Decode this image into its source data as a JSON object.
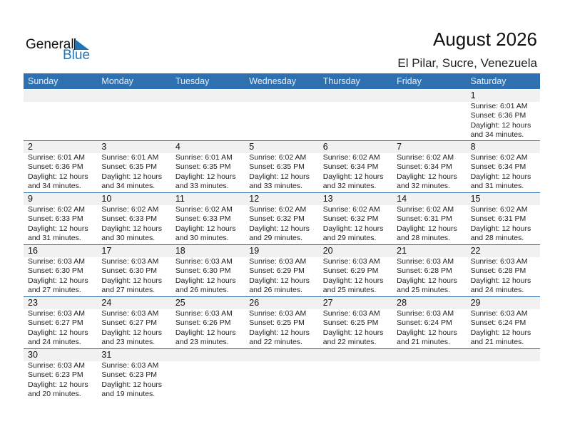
{
  "logo": {
    "text1": "General",
    "text2": "Blue"
  },
  "title": "August 2026",
  "location": "El Pilar, Sucre, Venezuela",
  "weekdays": [
    "Sunday",
    "Monday",
    "Tuesday",
    "Wednesday",
    "Thursday",
    "Friday",
    "Saturday"
  ],
  "colors": {
    "header": "#2e70b0",
    "band": "#f1f1f1",
    "logo_blue": "#1f73b7"
  },
  "weeks": [
    [
      null,
      null,
      null,
      null,
      null,
      null,
      {
        "day": "1",
        "sunrise": "Sunrise: 6:01 AM",
        "sunset": "Sunset: 6:36 PM",
        "daylight": "Daylight: 12 hours",
        "minutes": "and 34 minutes."
      }
    ],
    [
      {
        "day": "2",
        "sunrise": "Sunrise: 6:01 AM",
        "sunset": "Sunset: 6:36 PM",
        "daylight": "Daylight: 12 hours",
        "minutes": "and 34 minutes."
      },
      {
        "day": "3",
        "sunrise": "Sunrise: 6:01 AM",
        "sunset": "Sunset: 6:35 PM",
        "daylight": "Daylight: 12 hours",
        "minutes": "and 34 minutes."
      },
      {
        "day": "4",
        "sunrise": "Sunrise: 6:01 AM",
        "sunset": "Sunset: 6:35 PM",
        "daylight": "Daylight: 12 hours",
        "minutes": "and 33 minutes."
      },
      {
        "day": "5",
        "sunrise": "Sunrise: 6:02 AM",
        "sunset": "Sunset: 6:35 PM",
        "daylight": "Daylight: 12 hours",
        "minutes": "and 33 minutes."
      },
      {
        "day": "6",
        "sunrise": "Sunrise: 6:02 AM",
        "sunset": "Sunset: 6:34 PM",
        "daylight": "Daylight: 12 hours",
        "minutes": "and 32 minutes."
      },
      {
        "day": "7",
        "sunrise": "Sunrise: 6:02 AM",
        "sunset": "Sunset: 6:34 PM",
        "daylight": "Daylight: 12 hours",
        "minutes": "and 32 minutes."
      },
      {
        "day": "8",
        "sunrise": "Sunrise: 6:02 AM",
        "sunset": "Sunset: 6:34 PM",
        "daylight": "Daylight: 12 hours",
        "minutes": "and 31 minutes."
      }
    ],
    [
      {
        "day": "9",
        "sunrise": "Sunrise: 6:02 AM",
        "sunset": "Sunset: 6:33 PM",
        "daylight": "Daylight: 12 hours",
        "minutes": "and 31 minutes."
      },
      {
        "day": "10",
        "sunrise": "Sunrise: 6:02 AM",
        "sunset": "Sunset: 6:33 PM",
        "daylight": "Daylight: 12 hours",
        "minutes": "and 30 minutes."
      },
      {
        "day": "11",
        "sunrise": "Sunrise: 6:02 AM",
        "sunset": "Sunset: 6:33 PM",
        "daylight": "Daylight: 12 hours",
        "minutes": "and 30 minutes."
      },
      {
        "day": "12",
        "sunrise": "Sunrise: 6:02 AM",
        "sunset": "Sunset: 6:32 PM",
        "daylight": "Daylight: 12 hours",
        "minutes": "and 29 minutes."
      },
      {
        "day": "13",
        "sunrise": "Sunrise: 6:02 AM",
        "sunset": "Sunset: 6:32 PM",
        "daylight": "Daylight: 12 hours",
        "minutes": "and 29 minutes."
      },
      {
        "day": "14",
        "sunrise": "Sunrise: 6:02 AM",
        "sunset": "Sunset: 6:31 PM",
        "daylight": "Daylight: 12 hours",
        "minutes": "and 28 minutes."
      },
      {
        "day": "15",
        "sunrise": "Sunrise: 6:02 AM",
        "sunset": "Sunset: 6:31 PM",
        "daylight": "Daylight: 12 hours",
        "minutes": "and 28 minutes."
      }
    ],
    [
      {
        "day": "16",
        "sunrise": "Sunrise: 6:03 AM",
        "sunset": "Sunset: 6:30 PM",
        "daylight": "Daylight: 12 hours",
        "minutes": "and 27 minutes."
      },
      {
        "day": "17",
        "sunrise": "Sunrise: 6:03 AM",
        "sunset": "Sunset: 6:30 PM",
        "daylight": "Daylight: 12 hours",
        "minutes": "and 27 minutes."
      },
      {
        "day": "18",
        "sunrise": "Sunrise: 6:03 AM",
        "sunset": "Sunset: 6:30 PM",
        "daylight": "Daylight: 12 hours",
        "minutes": "and 26 minutes."
      },
      {
        "day": "19",
        "sunrise": "Sunrise: 6:03 AM",
        "sunset": "Sunset: 6:29 PM",
        "daylight": "Daylight: 12 hours",
        "minutes": "and 26 minutes."
      },
      {
        "day": "20",
        "sunrise": "Sunrise: 6:03 AM",
        "sunset": "Sunset: 6:29 PM",
        "daylight": "Daylight: 12 hours",
        "minutes": "and 25 minutes."
      },
      {
        "day": "21",
        "sunrise": "Sunrise: 6:03 AM",
        "sunset": "Sunset: 6:28 PM",
        "daylight": "Daylight: 12 hours",
        "minutes": "and 25 minutes."
      },
      {
        "day": "22",
        "sunrise": "Sunrise: 6:03 AM",
        "sunset": "Sunset: 6:28 PM",
        "daylight": "Daylight: 12 hours",
        "minutes": "and 24 minutes."
      }
    ],
    [
      {
        "day": "23",
        "sunrise": "Sunrise: 6:03 AM",
        "sunset": "Sunset: 6:27 PM",
        "daylight": "Daylight: 12 hours",
        "minutes": "and 24 minutes."
      },
      {
        "day": "24",
        "sunrise": "Sunrise: 6:03 AM",
        "sunset": "Sunset: 6:27 PM",
        "daylight": "Daylight: 12 hours",
        "minutes": "and 23 minutes."
      },
      {
        "day": "25",
        "sunrise": "Sunrise: 6:03 AM",
        "sunset": "Sunset: 6:26 PM",
        "daylight": "Daylight: 12 hours",
        "minutes": "and 23 minutes."
      },
      {
        "day": "26",
        "sunrise": "Sunrise: 6:03 AM",
        "sunset": "Sunset: 6:25 PM",
        "daylight": "Daylight: 12 hours",
        "minutes": "and 22 minutes."
      },
      {
        "day": "27",
        "sunrise": "Sunrise: 6:03 AM",
        "sunset": "Sunset: 6:25 PM",
        "daylight": "Daylight: 12 hours",
        "minutes": "and 22 minutes."
      },
      {
        "day": "28",
        "sunrise": "Sunrise: 6:03 AM",
        "sunset": "Sunset: 6:24 PM",
        "daylight": "Daylight: 12 hours",
        "minutes": "and 21 minutes."
      },
      {
        "day": "29",
        "sunrise": "Sunrise: 6:03 AM",
        "sunset": "Sunset: 6:24 PM",
        "daylight": "Daylight: 12 hours",
        "minutes": "and 21 minutes."
      }
    ],
    [
      {
        "day": "30",
        "sunrise": "Sunrise: 6:03 AM",
        "sunset": "Sunset: 6:23 PM",
        "daylight": "Daylight: 12 hours",
        "minutes": "and 20 minutes."
      },
      {
        "day": "31",
        "sunrise": "Sunrise: 6:03 AM",
        "sunset": "Sunset: 6:23 PM",
        "daylight": "Daylight: 12 hours",
        "minutes": "and 19 minutes."
      },
      null,
      null,
      null,
      null,
      null
    ]
  ]
}
